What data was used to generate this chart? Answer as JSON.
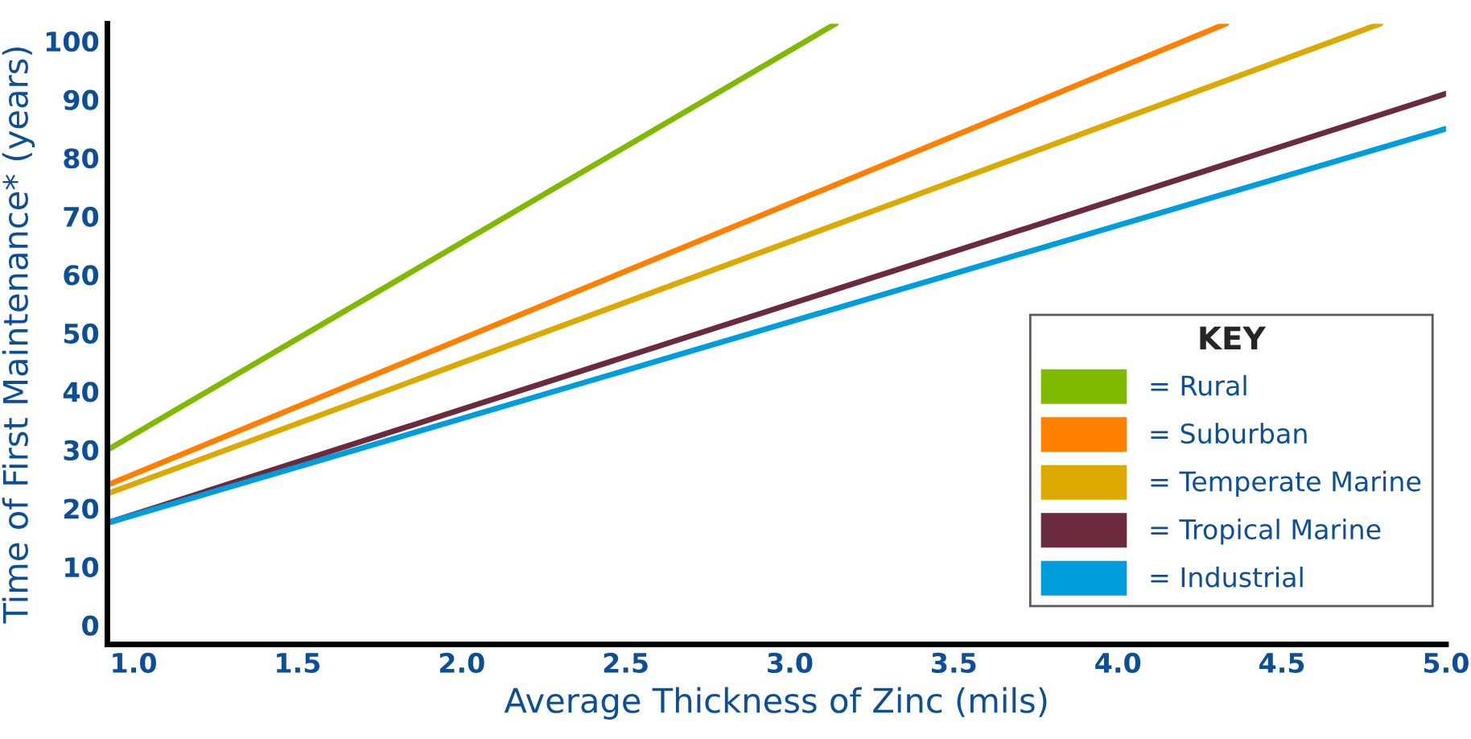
{
  "chart_data": {
    "type": "line",
    "xlabel": "Average Thickness of Zinc (mils)",
    "ylabel": "Time of First Maintenance* (years)",
    "legend_title": "KEY",
    "xlim": [
      0.92,
      5.0
    ],
    "ylim": [
      -3.3,
      103
    ],
    "xticks": [
      {
        "value": 1.0,
        "label": "1.0"
      },
      {
        "value": 1.5,
        "label": "1.5"
      },
      {
        "value": 2.0,
        "label": "2.0"
      },
      {
        "value": 2.5,
        "label": "2.5"
      },
      {
        "value": 3.0,
        "label": "3.0"
      },
      {
        "value": 3.5,
        "label": "3.5"
      },
      {
        "value": 4.0,
        "label": "4.0"
      },
      {
        "value": 4.5,
        "label": "4.5"
      },
      {
        "value": 5.0,
        "label": "5.0"
      }
    ],
    "yticks": [
      0,
      10,
      20,
      30,
      40,
      50,
      60,
      70,
      80,
      90,
      100
    ],
    "legend": "bottom right",
    "grid": false,
    "line_style": "solid",
    "series": [
      {
        "name": "= Rural",
        "color": "#7fba00",
        "x": [
          0.92,
          3.14
        ],
        "values": [
          30,
          103
        ]
      },
      {
        "name": "= Suburban",
        "color": "#ff7f00",
        "x": [
          0.92,
          4.33
        ],
        "values": [
          24,
          103
        ]
      },
      {
        "name": "= Temperate Marine",
        "color": "#dba900",
        "x": [
          0.92,
          4.8
        ],
        "values": [
          22.5,
          103
        ]
      },
      {
        "name": "= Tropical Marine",
        "color": "#6b2a3e",
        "x": [
          0.92,
          5.0
        ],
        "values": [
          17.5,
          91
        ]
      },
      {
        "name": "= Industrial",
        "color": "#009ddc",
        "x": [
          0.92,
          5.0
        ],
        "values": [
          17.5,
          85
        ]
      }
    ]
  }
}
